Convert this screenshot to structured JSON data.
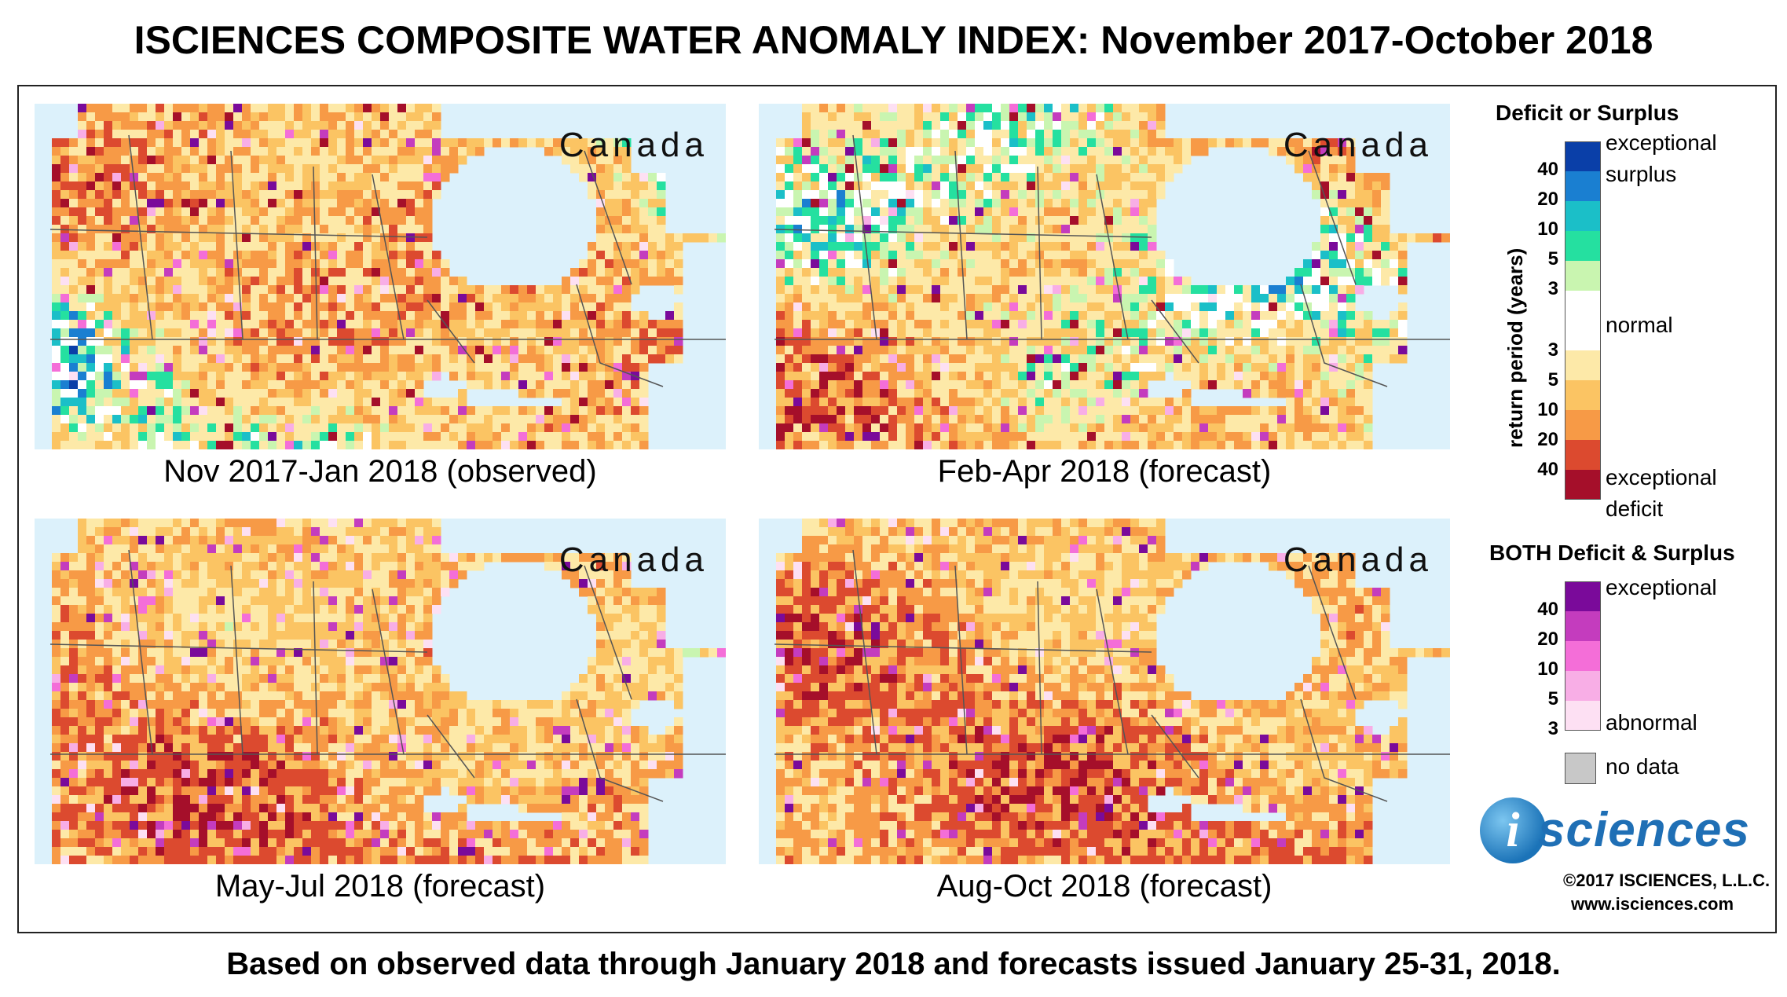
{
  "title": "ISCIENCES COMPOSITE WATER ANOMALY INDEX: November 2017-October 2018",
  "footer": "Based on observed data through January 2018 and forecasts issued January 25-31, 2018.",
  "region_label": "Canada",
  "panels": [
    {
      "caption": "Nov 2017-Jan 2018 (observed)",
      "dominant": "mixed-surplus-deficit"
    },
    {
      "caption": "Feb-Apr 2018 (forecast)",
      "dominant": "mixed-surplus-deficit"
    },
    {
      "caption": "May-Jul 2018 (forecast)",
      "dominant": "deficit"
    },
    {
      "caption": "Aug-Oct 2018 (forecast)",
      "dominant": "deficit"
    }
  ],
  "legend": {
    "deficit_surplus_heading": "Deficit or Surplus",
    "axis_title": "return period (years)",
    "surplus_ticks": [
      "40",
      "20",
      "10",
      "5",
      "3"
    ],
    "deficit_ticks": [
      "3",
      "5",
      "10",
      "20",
      "40"
    ],
    "label_exceptional": "exceptional",
    "label_surplus": "surplus",
    "label_normal": "normal",
    "label_deficit": "deficit",
    "both_heading": "BOTH Deficit & Surplus",
    "both_ticks": [
      "40",
      "20",
      "10",
      "5",
      "3"
    ],
    "label_abnormal": "abnormal",
    "label_no_data": "no data",
    "colors": {
      "surplus": [
        "#0a3fa8",
        "#1a7fd1",
        "#1bbfc8",
        "#25e0a0",
        "#c9f5b0"
      ],
      "normal": "#ffffff",
      "deficit": [
        "#fde9a8",
        "#fbc463",
        "#f79a46",
        "#dc4a2f",
        "#a50f2a"
      ],
      "both": [
        "#7a0a9a",
        "#c43cbe",
        "#f46ed8",
        "#f8aee6",
        "#fde0f3"
      ],
      "no_data": "#c8c8c8"
    }
  },
  "logo": {
    "glyph": "i",
    "text": "sciences"
  },
  "copyright": "©2017 ISCIENCES, L.L.C.",
  "website": "www.isciences.com"
}
